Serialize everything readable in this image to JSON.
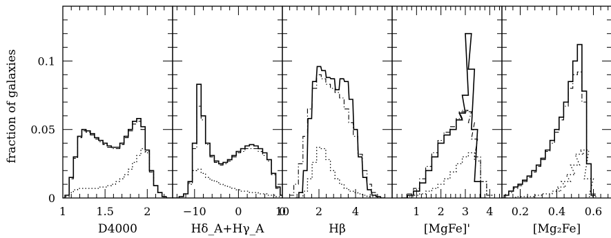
{
  "figure": {
    "ylabel": "fraction of galaxies",
    "y_ticks": [
      "0",
      "0.05",
      "0.1"
    ],
    "ylim": [
      0,
      0.14
    ]
  },
  "chart_data": [
    {
      "type": "line",
      "xlabel": "D4000",
      "xlim": [
        1.0,
        2.3
      ],
      "tick_values": [
        1,
        1.5,
        2
      ],
      "tick_labels": [
        "1",
        "1.5",
        "2"
      ],
      "ylim": [
        0,
        0.14
      ],
      "series": [
        {
          "style": "solid",
          "x": [
            1.0,
            1.05,
            1.1,
            1.15,
            1.2,
            1.25,
            1.3,
            1.35,
            1.4,
            1.45,
            1.5,
            1.55,
            1.6,
            1.65,
            1.7,
            1.75,
            1.8,
            1.85,
            1.9,
            1.95,
            2.0,
            2.05,
            2.1,
            2.15,
            2.2,
            2.25,
            2.3
          ],
          "y": [
            0,
            0.002,
            0.015,
            0.03,
            0.045,
            0.05,
            0.049,
            0.047,
            0.044,
            0.042,
            0.04,
            0.038,
            0.037,
            0.037,
            0.04,
            0.045,
            0.05,
            0.056,
            0.058,
            0.052,
            0.035,
            0.02,
            0.009,
            0.004,
            0.001,
            0,
            0
          ]
        },
        {
          "style": "dashdot",
          "x": [
            1.0,
            1.05,
            1.1,
            1.15,
            1.2,
            1.25,
            1.3,
            1.35,
            1.4,
            1.45,
            1.5,
            1.55,
            1.6,
            1.65,
            1.7,
            1.75,
            1.8,
            1.85,
            1.9,
            1.95,
            2.0,
            2.05,
            2.1,
            2.15,
            2.2,
            2.25,
            2.3
          ],
          "y": [
            0,
            0.002,
            0.014,
            0.029,
            0.044,
            0.049,
            0.048,
            0.046,
            0.043,
            0.041,
            0.039,
            0.037,
            0.036,
            0.036,
            0.039,
            0.044,
            0.049,
            0.054,
            0.056,
            0.05,
            0.034,
            0.019,
            0.009,
            0.004,
            0.001,
            0,
            0
          ]
        },
        {
          "style": "dotted",
          "x": [
            1.0,
            1.05,
            1.1,
            1.15,
            1.2,
            1.25,
            1.3,
            1.35,
            1.4,
            1.45,
            1.5,
            1.55,
            1.6,
            1.65,
            1.7,
            1.75,
            1.8,
            1.85,
            1.9,
            1.95,
            2.0,
            2.05,
            2.1,
            2.15,
            2.2,
            2.25,
            2.3
          ],
          "y": [
            0,
            0.001,
            0.004,
            0.006,
            0.007,
            0.007,
            0.007,
            0.007,
            0.007,
            0.008,
            0.008,
            0.009,
            0.01,
            0.012,
            0.014,
            0.017,
            0.021,
            0.026,
            0.031,
            0.036,
            0.033,
            0.02,
            0.009,
            0.004,
            0.001,
            0,
            0
          ]
        }
      ]
    },
    {
      "type": "line",
      "xlabel": "Hδ_A+Hγ_A",
      "xlim": [
        -15,
        10
      ],
      "tick_values": [
        -10,
        0,
        10
      ],
      "tick_labels": [
        "−10",
        "0",
        "10"
      ],
      "ylim": [
        0,
        0.14
      ],
      "series": [
        {
          "style": "solid",
          "x": [
            -15,
            -14,
            -13,
            -12,
            -11,
            -10,
            -9,
            -8,
            -7,
            -6,
            -5,
            -4,
            -3,
            -2,
            -1,
            0,
            1,
            2,
            3,
            4,
            5,
            6,
            7,
            8,
            9,
            10
          ],
          "y": [
            0,
            0,
            0.001,
            0.003,
            0.012,
            0.04,
            0.083,
            0.06,
            0.04,
            0.031,
            0.027,
            0.025,
            0.026,
            0.028,
            0.031,
            0.034,
            0.036,
            0.038,
            0.039,
            0.038,
            0.036,
            0.033,
            0.028,
            0.018,
            0.008,
            0.002
          ]
        },
        {
          "style": "dashdot",
          "x": [
            -15,
            -14,
            -13,
            -12,
            -11,
            -10,
            -9,
            -8,
            -7,
            -6,
            -5,
            -4,
            -3,
            -2,
            -1,
            0,
            1,
            2,
            3,
            4,
            5,
            6,
            7,
            8,
            9,
            10
          ],
          "y": [
            0,
            0,
            0.001,
            0.003,
            0.011,
            0.036,
            0.067,
            0.057,
            0.039,
            0.03,
            0.026,
            0.024,
            0.025,
            0.027,
            0.03,
            0.033,
            0.034,
            0.036,
            0.036,
            0.036,
            0.034,
            0.031,
            0.027,
            0.017,
            0.007,
            0.002
          ]
        },
        {
          "style": "dotted",
          "x": [
            -15,
            -14,
            -13,
            -12,
            -11,
            -10,
            -9,
            -8,
            -7,
            -6,
            -5,
            -4,
            -3,
            -2,
            -1,
            0,
            1,
            2,
            3,
            4,
            5,
            6,
            7,
            8,
            9,
            10
          ],
          "y": [
            0,
            0,
            0.001,
            0.003,
            0.01,
            0.02,
            0.021,
            0.018,
            0.015,
            0.013,
            0.012,
            0.01,
            0.009,
            0.008,
            0.007,
            0.006,
            0.005,
            0.005,
            0.004,
            0.004,
            0.003,
            0.003,
            0.002,
            0.002,
            0.001,
            0
          ]
        }
      ]
    },
    {
      "type": "line",
      "xlabel": "Hβ",
      "xlim": [
        0,
        6
      ],
      "tick_values": [
        0,
        2,
        4
      ],
      "tick_labels": [
        "0",
        "2",
        "4"
      ],
      "ylim": [
        0,
        0.14
      ],
      "series": [
        {
          "style": "solid",
          "x": [
            0.8,
            1.0,
            1.25,
            1.5,
            1.75,
            2.0,
            2.25,
            2.5,
            2.75,
            3.0,
            3.25,
            3.5,
            3.75,
            4.0,
            4.25,
            4.5,
            4.75,
            5.0,
            5.25,
            5.5
          ],
          "y": [
            0,
            0.004,
            0.02,
            0.058,
            0.085,
            0.096,
            0.093,
            0.088,
            0.087,
            0.079,
            0.087,
            0.085,
            0.072,
            0.05,
            0.03,
            0.015,
            0.006,
            0.002,
            0.001,
            0
          ]
        },
        {
          "style": "dashdot",
          "x": [
            0.5,
            0.75,
            1.0,
            1.25,
            1.5,
            1.75,
            2.0,
            2.25,
            2.5,
            2.75,
            3.0,
            3.25,
            3.5,
            3.75,
            4.0,
            4.25,
            4.5,
            4.75,
            5.0,
            5.25,
            5.5
          ],
          "y": [
            0.002,
            0.01,
            0.025,
            0.045,
            0.065,
            0.08,
            0.09,
            0.087,
            0.083,
            0.08,
            0.077,
            0.073,
            0.065,
            0.055,
            0.045,
            0.032,
            0.02,
            0.01,
            0.004,
            0.001,
            0
          ]
        },
        {
          "style": "dotted",
          "x": [
            1.0,
            1.25,
            1.5,
            1.75,
            2.0,
            2.25,
            2.5,
            2.75,
            3.0,
            3.25,
            3.5,
            3.75,
            4.0,
            4.25,
            4.5,
            4.75,
            5.0,
            5.25,
            5.5
          ],
          "y": [
            0,
            0.005,
            0.014,
            0.026,
            0.037,
            0.036,
            0.028,
            0.02,
            0.014,
            0.01,
            0.007,
            0.005,
            0.004,
            0.003,
            0.002,
            0.001,
            0.001,
            0,
            0
          ]
        }
      ]
    },
    {
      "type": "line",
      "xlabel": "[MgFe]'",
      "xlim": [
        0,
        4.5
      ],
      "tick_values": [
        1,
        2,
        3,
        4
      ],
      "tick_labels": [
        "1",
        "2",
        "3",
        "4"
      ],
      "ylim": [
        0,
        0.14
      ],
      "series": [
        {
          "style": "solid",
          "x": [
            0.5,
            0.75,
            1.0,
            1.25,
            1.5,
            1.75,
            2.0,
            2.25,
            2.5,
            2.75,
            2.875,
            3.0,
            3.125,
            3.25,
            3.375,
            3.5,
            3.75
          ],
          "y": [
            0,
            0.002,
            0.005,
            0.011,
            0.02,
            0.03,
            0.04,
            0.046,
            0.05,
            0.057,
            0.062,
            0.075,
            0.12,
            0.094,
            0.05,
            0.012,
            0
          ]
        },
        {
          "style": "dashdot",
          "x": [
            0.5,
            0.75,
            1.0,
            1.25,
            1.5,
            1.75,
            2.0,
            2.25,
            2.5,
            2.75,
            2.875,
            3.0,
            3.125,
            3.25,
            3.375,
            3.5,
            3.75,
            4.0
          ],
          "y": [
            0,
            0.003,
            0.007,
            0.014,
            0.023,
            0.033,
            0.042,
            0.048,
            0.052,
            0.058,
            0.063,
            0.064,
            0.063,
            0.055,
            0.043,
            0.03,
            0.012,
            0.002
          ]
        },
        {
          "style": "dotted",
          "x": [
            0.5,
            0.75,
            1.0,
            1.25,
            1.5,
            1.75,
            2.0,
            2.25,
            2.5,
            2.75,
            3.0,
            3.25,
            3.5,
            3.75,
            4.0
          ],
          "y": [
            0,
            0.001,
            0.002,
            0.003,
            0.005,
            0.007,
            0.01,
            0.014,
            0.019,
            0.025,
            0.03,
            0.033,
            0.027,
            0.012,
            0.002
          ]
        }
      ]
    },
    {
      "type": "line",
      "xlabel": "[Mg₂Fe]",
      "xlim": [
        0.1,
        0.7
      ],
      "tick_values": [
        0.2,
        0.4,
        0.6
      ],
      "tick_labels": [
        "0.2",
        "0.4",
        "0.6"
      ],
      "ylim": [
        0,
        0.14
      ],
      "series": [
        {
          "style": "solid",
          "x": [
            0.1,
            0.125,
            0.15,
            0.175,
            0.2,
            0.225,
            0.25,
            0.275,
            0.3,
            0.325,
            0.35,
            0.375,
            0.4,
            0.425,
            0.45,
            0.475,
            0.5,
            0.525,
            0.55,
            0.575,
            0.6
          ],
          "y": [
            0,
            0.002,
            0.005,
            0.008,
            0.01,
            0.013,
            0.016,
            0.02,
            0.024,
            0.029,
            0.035,
            0.042,
            0.05,
            0.059,
            0.07,
            0.085,
            0.1,
            0.112,
            0.078,
            0.025,
            0.002
          ]
        },
        {
          "style": "dashdot",
          "x": [
            0.1,
            0.125,
            0.15,
            0.175,
            0.2,
            0.225,
            0.25,
            0.275,
            0.3,
            0.325,
            0.35,
            0.375,
            0.4,
            0.425,
            0.45,
            0.475,
            0.5,
            0.525,
            0.55,
            0.575,
            0.6
          ],
          "y": [
            0,
            0.002,
            0.004,
            0.007,
            0.009,
            0.012,
            0.015,
            0.019,
            0.023,
            0.028,
            0.034,
            0.04,
            0.048,
            0.057,
            0.067,
            0.08,
            0.09,
            0.092,
            0.07,
            0.025,
            0.003
          ]
        },
        {
          "style": "dotted",
          "x": [
            0.15,
            0.2,
            0.25,
            0.3,
            0.35,
            0.4,
            0.425,
            0.45,
            0.475,
            0.5,
            0.525,
            0.55,
            0.575,
            0.6
          ],
          "y": [
            0,
            0.001,
            0.001,
            0.002,
            0.003,
            0.005,
            0.008,
            0.012,
            0.017,
            0.024,
            0.032,
            0.035,
            0.014,
            0.001
          ]
        }
      ]
    }
  ]
}
